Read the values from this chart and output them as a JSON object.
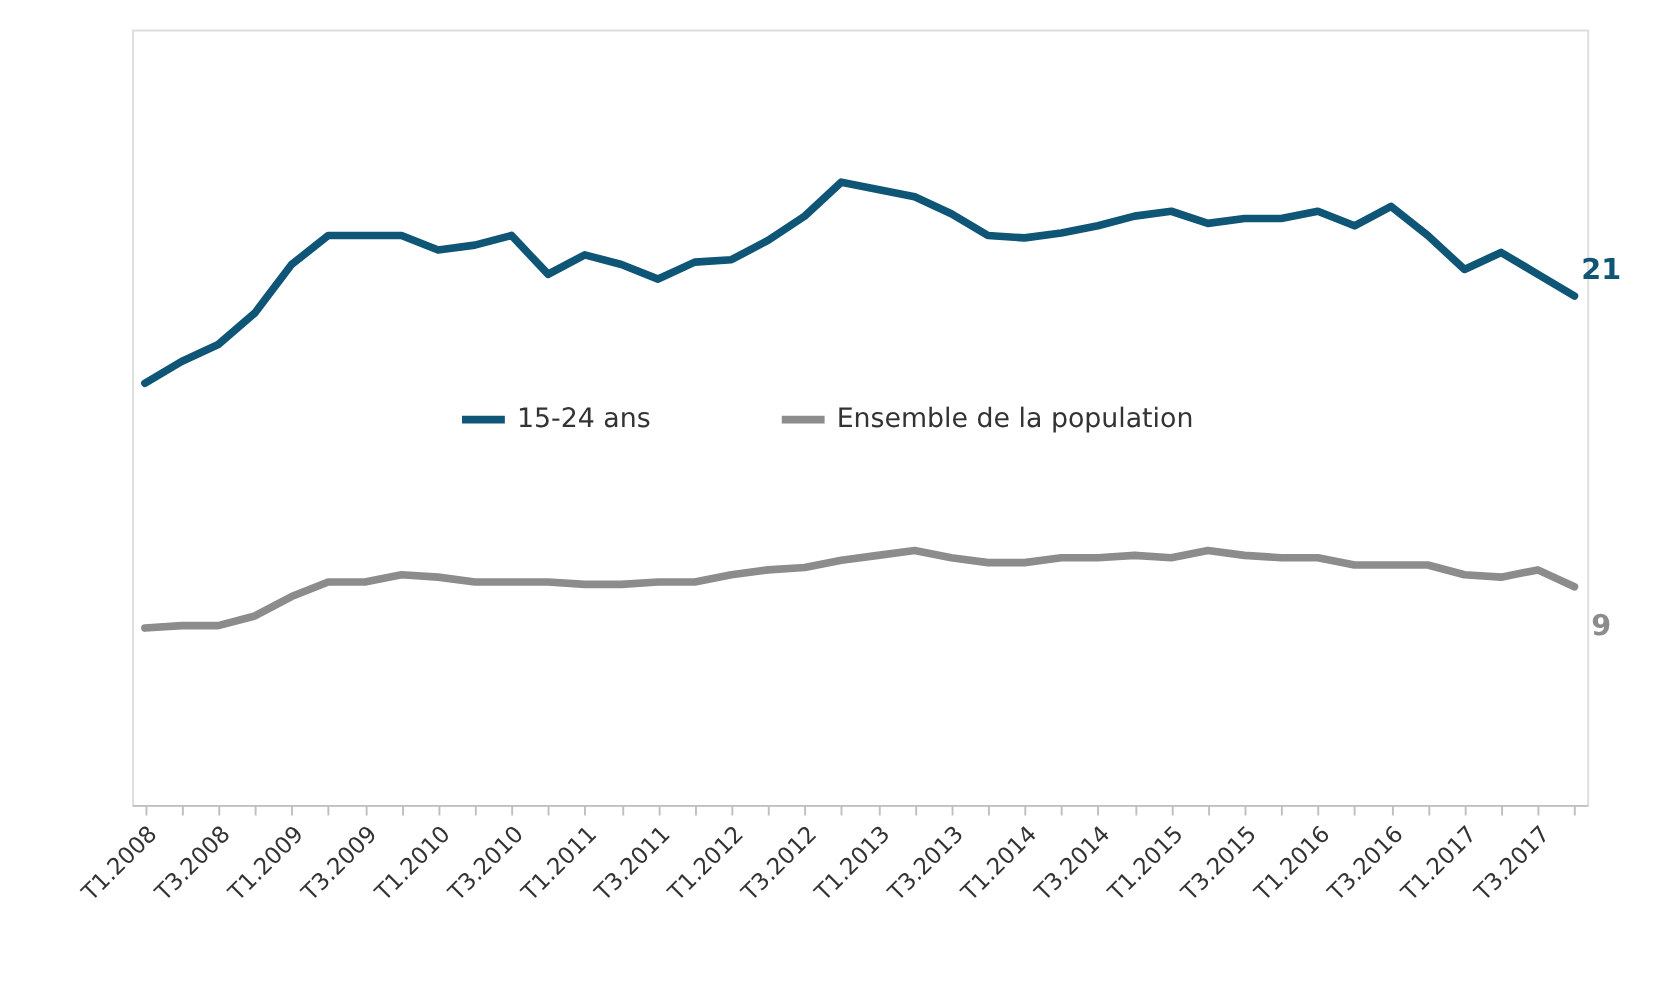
{
  "chart_data": {
    "type": "line",
    "categories": [
      "T1.2008",
      null,
      "T3.2008",
      null,
      "T1.2009",
      null,
      "T3.2009",
      null,
      "T1.2010",
      null,
      "T3.2010",
      null,
      "T1.2011",
      null,
      "T3.2011",
      null,
      "T1.2012",
      null,
      "T3.2012",
      null,
      "T1.2013",
      null,
      "T3.2013",
      null,
      "T1.2014",
      null,
      "T3.2014",
      null,
      "T1.2015",
      null,
      "T3.2015",
      null,
      "T1.2016",
      null,
      "T3.2016",
      null,
      "T1.2017",
      null,
      "T3.2017",
      null
    ],
    "ylim": [
      0,
      32
    ],
    "series": [
      {
        "name": "15-24 ans",
        "color": "#0e5576",
        "values": [
          17.4,
          18.3,
          19.0,
          20.3,
          22.3,
          23.5,
          23.5,
          23.5,
          22.9,
          23.1,
          23.5,
          21.9,
          22.7,
          22.3,
          21.7,
          22.4,
          22.5,
          23.3,
          24.3,
          25.7,
          25.4,
          25.1,
          24.4,
          23.5,
          23.4,
          23.6,
          23.9,
          24.3,
          24.5,
          24.0,
          24.2,
          24.2,
          24.5,
          23.9,
          24.7,
          23.5,
          22.1,
          22.8,
          21.9,
          21
        ],
        "value_labels": [
          null,
          null,
          null,
          null,
          null,
          null,
          null,
          null,
          null,
          null,
          null,
          null,
          null,
          null,
          null,
          null,
          null,
          null,
          null,
          null,
          null,
          null,
          null,
          null,
          null,
          null,
          null,
          null,
          null,
          null,
          null,
          null,
          null,
          null,
          null,
          null,
          null,
          null,
          null,
          "21"
        ]
      },
      {
        "name": "Ensemble de la population",
        "color": "#8c8c8c",
        "values": [
          7.3,
          7.4,
          7.4,
          7.8,
          8.6,
          9.2,
          9.2,
          9.5,
          9.4,
          9.2,
          9.2,
          9.2,
          9.1,
          9.1,
          9.2,
          9.2,
          9.5,
          9.7,
          9.8,
          10.1,
          10.3,
          10.5,
          10.2,
          10.0,
          10.0,
          10.2,
          10.2,
          10.3,
          10.2,
          10.5,
          10.3,
          10.2,
          10.2,
          9.9,
          9.9,
          9.9,
          9.5,
          9.4,
          9.7,
          9
        ],
        "value_labels": [
          null,
          null,
          null,
          null,
          null,
          null,
          null,
          null,
          null,
          null,
          null,
          null,
          null,
          null,
          null,
          null,
          null,
          null,
          null,
          null,
          null,
          null,
          null,
          null,
          null,
          null,
          null,
          null,
          null,
          null,
          null,
          null,
          null,
          null,
          null,
          null,
          null,
          null,
          null,
          "9"
        ]
      }
    ],
    "legend": "center",
    "line_style": "solid",
    "grid": false
  }
}
